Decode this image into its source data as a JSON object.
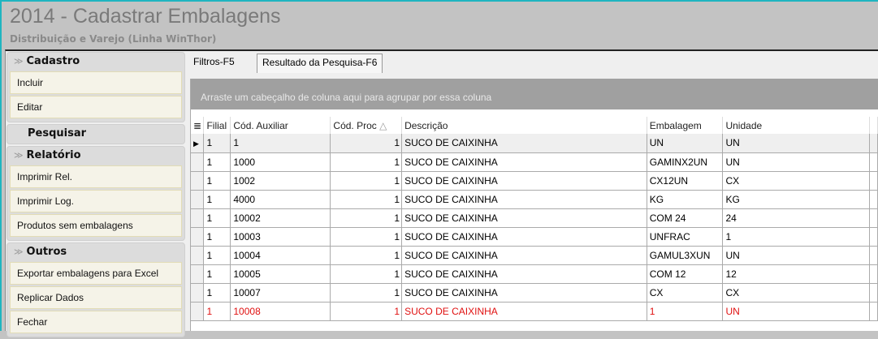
{
  "window": {
    "title": "2014 - Cadastrar Embalagens",
    "subtitle": "Distribuição e Varejo (Linha WinThor)"
  },
  "sidebar": {
    "cadastro": {
      "title": "Cadastro",
      "items": [
        "Incluir",
        "Editar"
      ]
    },
    "pesquisar": "Pesquisar",
    "relatorio": {
      "title": "Relatório",
      "items": [
        "Imprimir Rel.",
        "Imprimir Log.",
        "Produtos sem embalagens"
      ]
    },
    "outros": {
      "title": "Outros",
      "items": [
        "Exportar embalagens para Excel",
        "Replicar Dados",
        "Fechar"
      ]
    }
  },
  "tabs": [
    "Filtros-F5",
    "Resultado da Pesquisa-F6"
  ],
  "grid": {
    "group_hint": "Arraste um cabeçalho de coluna aqui para agrupar por essa coluna",
    "columns": [
      "Filial",
      "Cód. Auxiliar",
      "Cód. Proc",
      "Descrição",
      "Embalagem",
      "Unidade"
    ],
    "sort_icon": "triangle-up",
    "rows": [
      [
        "1",
        "1",
        "1",
        "SUCO DE CAIXINHA",
        "UN",
        "UN"
      ],
      [
        "1",
        "1000",
        "1",
        "SUCO DE CAIXINHA",
        "GAMINX2UN",
        "UN"
      ],
      [
        "1",
        "1002",
        "1",
        "SUCO DE CAIXINHA",
        "CX12UN",
        "CX"
      ],
      [
        "1",
        "4000",
        "1",
        "SUCO DE CAIXINHA",
        "KG",
        "KG"
      ],
      [
        "1",
        "10002",
        "1",
        "SUCO DE CAIXINHA",
        "COM 24",
        "24"
      ],
      [
        "1",
        "10003",
        "1",
        "SUCO DE CAIXINHA",
        "UNFRAC",
        "1"
      ],
      [
        "1",
        "10004",
        "1",
        "SUCO DE CAIXINHA",
        "GAMUL3XUN",
        "UN"
      ],
      [
        "1",
        "10005",
        "1",
        "SUCO DE CAIXINHA",
        "COM 12",
        "12"
      ],
      [
        "1",
        "10007",
        "1",
        "SUCO DE CAIXINHA",
        "CX",
        "CX"
      ],
      [
        "1",
        "10008",
        "1",
        "SUCO DE CAIXINHA",
        "1",
        "UN"
      ]
    ],
    "selected_color": "#e01010"
  }
}
